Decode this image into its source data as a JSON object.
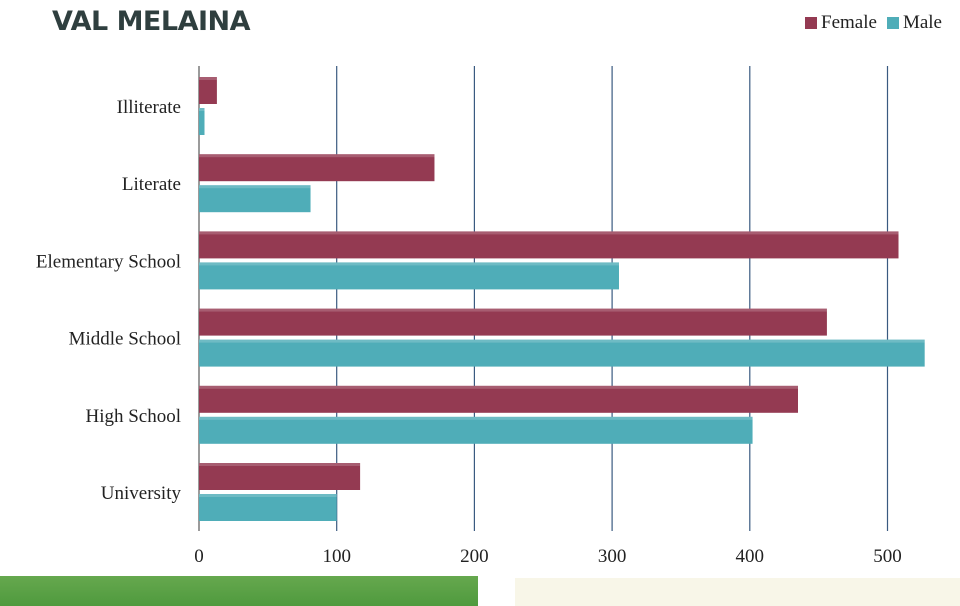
{
  "title": "VAL MELAINA",
  "colors": {
    "female": "#943a52",
    "male": "#4fadb8",
    "gridline": "#3a5a80",
    "axis": "#7a7a7a"
  },
  "legend": {
    "position": "top-right",
    "items": [
      {
        "label": "Female",
        "color": "#943a52"
      },
      {
        "label": "Male",
        "color": "#4fadb8"
      }
    ]
  },
  "chart_data": {
    "type": "bar",
    "orientation": "horizontal",
    "title": "VAL MELAINA",
    "xlabel": "",
    "ylabel": "",
    "categories": [
      "Illiterate",
      "Literate",
      "Elementary School",
      "Middle School",
      "High School",
      "University"
    ],
    "series": [
      {
        "name": "Female",
        "values": [
          13,
          171,
          508,
          456,
          435,
          117
        ]
      },
      {
        "name": "Male",
        "values": [
          4,
          81,
          305,
          527,
          402,
          100
        ]
      }
    ],
    "xlim": [
      0,
      540
    ],
    "xticks": [
      "0",
      "100",
      "200",
      "300",
      "400",
      "500"
    ],
    "grid": true,
    "legend_position": "top-right"
  }
}
